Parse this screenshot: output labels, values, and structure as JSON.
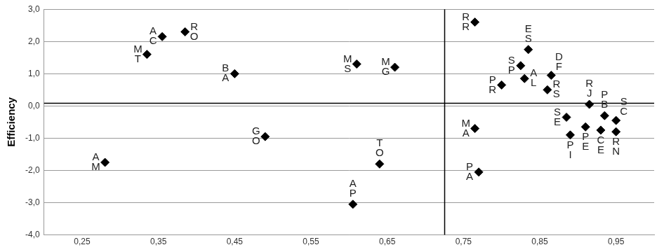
{
  "chart_data": {
    "type": "scatter",
    "y_label": "Efficiency",
    "x": [
      0.355,
      0.385,
      0.335,
      0.45,
      0.61,
      0.66,
      0.49,
      0.28,
      0.64,
      0.605,
      0.765,
      0.835,
      0.825,
      0.865,
      0.8,
      0.83,
      0.86,
      0.915,
      0.935,
      0.95,
      0.885,
      0.89,
      0.91,
      0.93,
      0.95,
      0.765,
      0.77
    ],
    "values": [
      2.15,
      2.3,
      1.6,
      1.0,
      1.3,
      1.2,
      -0.95,
      -1.75,
      -1.8,
      -3.05,
      2.6,
      1.75,
      1.25,
      0.95,
      0.65,
      0.85,
      0.5,
      0.05,
      -0.3,
      -0.45,
      -0.35,
      -0.9,
      -0.65,
      -0.75,
      -0.8,
      -0.7,
      -2.05
    ],
    "point_labels": [
      [
        "A",
        "C"
      ],
      [
        "R",
        "O"
      ],
      [
        "M",
        "T"
      ],
      [
        "B",
        "A"
      ],
      [
        "M",
        "S"
      ],
      [
        "M",
        "G"
      ],
      [
        "G",
        "O"
      ],
      [
        "A",
        "M"
      ],
      [
        "T",
        "O"
      ],
      [
        "A",
        "P"
      ],
      [
        "R",
        "R"
      ],
      [
        "E",
        "S"
      ],
      [
        "S",
        "P"
      ],
      [
        "D",
        "F"
      ],
      [
        "P",
        "R"
      ],
      [
        "A",
        "L"
      ],
      [
        "R",
        "S"
      ],
      [
        "R",
        "J"
      ],
      [
        "P",
        "B"
      ],
      [
        "S",
        "C"
      ],
      [
        "S",
        "E"
      ],
      [
        "P",
        "I"
      ],
      [
        "P",
        "E"
      ],
      [
        "C",
        "E"
      ],
      [
        "R",
        "N"
      ],
      [
        "M",
        "A"
      ],
      [
        "P",
        "A"
      ]
    ],
    "color": "#000000",
    "marker": "diamond",
    "xlim": [
      0.2,
      1.0
    ],
    "xticks": [
      {
        "value": 0.25,
        "label": "0,25"
      },
      {
        "value": 0.35,
        "label": "0,35"
      },
      {
        "value": 0.45,
        "label": "0,45"
      },
      {
        "value": 0.55,
        "label": "0,55"
      },
      {
        "value": 0.65,
        "label": "0,65"
      },
      {
        "value": 0.75,
        "label": "0,75"
      },
      {
        "value": 0.85,
        "label": "0,85"
      },
      {
        "value": 0.95,
        "label": "0,95"
      }
    ],
    "ylim": [
      -4,
      3
    ],
    "yticks": [
      {
        "value": -4,
        "label": "-4,0"
      },
      {
        "value": -3,
        "label": "-3,0"
      },
      {
        "value": -2,
        "label": "-2,0"
      },
      {
        "value": -1,
        "label": "-1,0"
      },
      {
        "value": 0,
        "label": "0,0"
      },
      {
        "value": 1,
        "label": "1,0"
      },
      {
        "value": 2,
        "label": "2,0"
      },
      {
        "value": 3,
        "label": "3,0"
      }
    ],
    "grid": "y",
    "reference_lines": {
      "x": 0.725,
      "y": 0.1
    }
  }
}
